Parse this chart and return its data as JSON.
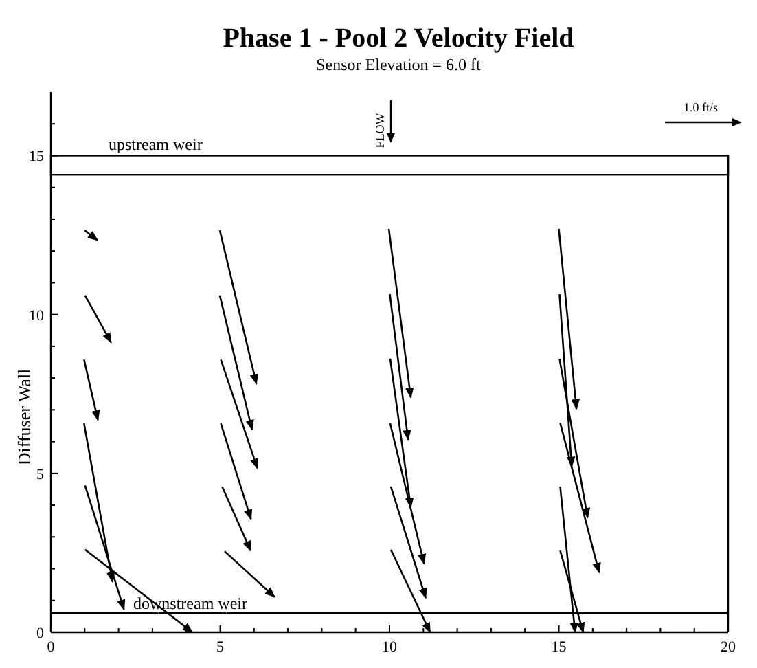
{
  "chart_data": {
    "type": "line",
    "title": "Phase 1 - Pool 2 Velocity Field",
    "subtitle": "Sensor Elevation = 6.0 ft",
    "ylabel": "Diffuser Wall",
    "annotations": [
      "FLOW",
      "1.0 ft/s"
    ],
    "xlim": [
      0,
      20
    ],
    "ylim": [
      0,
      17
    ],
    "xticks": [
      0,
      {
        "value": 1,
        "label": null
      },
      {
        "value": 2,
        "label": null
      },
      {
        "value": 3,
        "label": null
      },
      {
        "value": 4,
        "label": null
      },
      5,
      {
        "value": 6,
        "label": null
      },
      {
        "value": 7,
        "label": null
      },
      {
        "value": 8,
        "label": null
      },
      {
        "value": 9,
        "label": null
      },
      10,
      {
        "value": 11,
        "label": null
      },
      {
        "value": 12,
        "label": null
      },
      {
        "value": 13,
        "label": null
      },
      {
        "value": 14,
        "label": null
      },
      15,
      {
        "value": 16,
        "label": null
      },
      {
        "value": 17,
        "label": null
      },
      {
        "value": 18,
        "label": null
      },
      {
        "value": 19,
        "label": null
      },
      20
    ],
    "yticks": [
      0,
      {
        "value": 1,
        "label": null
      },
      {
        "value": 2,
        "label": null
      },
      {
        "value": 3,
        "label": null
      },
      {
        "value": 4,
        "label": null
      },
      5,
      {
        "value": 6,
        "label": null
      },
      {
        "value": 7,
        "label": null
      },
      {
        "value": 8,
        "label": null
      },
      {
        "value": 9,
        "label": null
      },
      10,
      {
        "value": 11,
        "label": null
      },
      {
        "value": 12,
        "label": null
      },
      {
        "value": 13,
        "label": null
      },
      {
        "value": 14,
        "label": null
      },
      15,
      {
        "value": 16,
        "label": null
      }
    ],
    "grid": false,
    "marker": "none",
    "line_style": "solid",
    "bands": [
      {
        "axis": "y",
        "from": 14.4,
        "to": 15,
        "label": "upstream weir",
        "color": "#ffffff"
      }
    ],
    "ref_lines": [
      {
        "axis": "y",
        "value": 0.6,
        "label": "downstream weir",
        "color": "#000000"
      }
    ],
    "series": [
      {
        "color": "#000000",
        "x": [
          1.0,
          1.38
        ],
        "values": [
          12.65,
          12.34
        ]
      },
      {
        "color": "#000000",
        "x": [
          1.01,
          1.78
        ],
        "values": [
          10.6,
          9.12
        ]
      },
      {
        "color": "#000000",
        "x": [
          0.98,
          1.39
        ],
        "values": [
          8.58,
          6.68
        ]
      },
      {
        "color": "#000000",
        "x": [
          0.98,
          1.82
        ],
        "values": [
          6.57,
          1.59
        ]
      },
      {
        "color": "#000000",
        "x": [
          1.01,
          2.16
        ],
        "values": [
          4.62,
          0.72
        ]
      },
      {
        "color": "#000000",
        "x": [
          1.01,
          4.18
        ],
        "values": [
          2.6,
          0
        ]
      },
      {
        "color": "#000000",
        "x": [
          4.99,
          6.07
        ],
        "values": [
          12.65,
          7.82
        ]
      },
      {
        "color": "#000000",
        "x": [
          4.99,
          5.94
        ],
        "values": [
          10.6,
          6.38
        ]
      },
      {
        "color": "#000000",
        "x": [
          5.02,
          6.1
        ],
        "values": [
          8.58,
          5.16
        ]
      },
      {
        "color": "#000000",
        "x": [
          5.02,
          5.91
        ],
        "values": [
          6.57,
          3.56
        ]
      },
      {
        "color": "#000000",
        "x": [
          5.06,
          5.9
        ],
        "values": [
          4.58,
          2.57
        ]
      },
      {
        "color": "#000000",
        "x": [
          5.13,
          6.61
        ],
        "values": [
          2.55,
          1.11
        ]
      },
      {
        "color": "#000000",
        "x": [
          9.98,
          10.63
        ],
        "values": [
          12.7,
          7.39
        ]
      },
      {
        "color": "#000000",
        "x": [
          10.01,
          10.55
        ],
        "values": [
          10.64,
          6.06
        ]
      },
      {
        "color": "#000000",
        "x": [
          10.02,
          10.63
        ],
        "values": [
          8.61,
          3.93
        ]
      },
      {
        "color": "#000000",
        "x": [
          10.02,
          11.02
        ],
        "values": [
          6.57,
          2.16
        ]
      },
      {
        "color": "#000000",
        "x": [
          10.04,
          11.07
        ],
        "values": [
          4.59,
          1.08
        ]
      },
      {
        "color": "#000000",
        "x": [
          10.04,
          11.2
        ],
        "values": [
          2.6,
          0
        ]
      },
      {
        "color": "#000000",
        "x": [
          15.0,
          15.52
        ],
        "values": [
          12.7,
          7.03
        ]
      },
      {
        "color": "#000000",
        "x": [
          15.02,
          15.38
        ],
        "values": [
          10.64,
          5.22
        ]
      },
      {
        "color": "#000000",
        "x": [
          15.02,
          15.85
        ],
        "values": [
          8.61,
          3.61
        ]
      },
      {
        "color": "#000000",
        "x": [
          15.04,
          16.19
        ],
        "values": [
          6.59,
          1.88
        ]
      },
      {
        "color": "#000000",
        "x": [
          15.04,
          15.48
        ],
        "values": [
          4.59,
          0
        ]
      },
      {
        "color": "#000000",
        "x": [
          15.04,
          15.72
        ],
        "values": [
          2.57,
          0
        ]
      }
    ]
  }
}
